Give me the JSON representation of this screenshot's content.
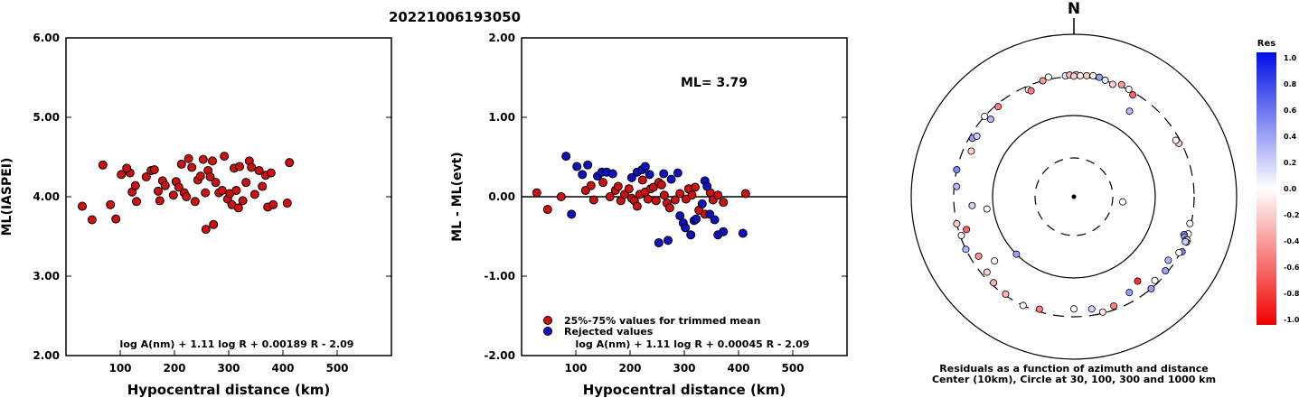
{
  "header": {
    "event_id": "20221006193050"
  },
  "chart_data": [
    {
      "type": "scatter",
      "ylabel": "ML(IASPEI)",
      "xlabel": "Hypocentral distance (km)",
      "xlim": [
        0,
        600
      ],
      "ylim": [
        2.0,
        6.0
      ],
      "x_ticks": [
        "100",
        "200",
        "300",
        "400",
        "500"
      ],
      "y_ticks": [
        "2.00",
        "3.00",
        "4.00",
        "5.00",
        "6.00"
      ],
      "formula": "log A(nm) + 1.11 log R + 0.00189 R - 2.09",
      "marker_color": "#d01010",
      "series": [
        {
          "x": [
            30,
            48,
            82,
            68,
            92,
            102,
            118,
            112,
            122,
            128,
            130,
            148,
            157,
            163,
            170,
            173,
            178,
            183,
            198,
            203,
            208,
            213,
            218,
            222,
            226,
            232,
            238,
            243,
            248,
            253,
            257,
            262,
            266,
            270,
            276,
            282,
            288,
            292,
            298,
            302,
            306,
            310,
            314,
            320,
            326,
            332,
            338,
            342,
            348,
            356,
            362,
            368,
            372,
            378,
            382,
            408,
            412,
            258,
            272,
            318
          ],
          "y": [
            3.88,
            3.71,
            3.9,
            4.4,
            3.72,
            4.28,
            4.3,
            4.36,
            4.06,
            4.14,
            3.94,
            4.25,
            4.33,
            4.34,
            4.07,
            3.95,
            4.2,
            4.14,
            4.02,
            4.19,
            4.12,
            4.41,
            4.05,
            4.0,
            4.48,
            4.37,
            3.94,
            4.21,
            4.26,
            4.47,
            4.05,
            4.33,
            4.25,
            4.45,
            4.18,
            4.05,
            4.08,
            4.51,
            3.97,
            4.04,
            3.9,
            4.36,
            4.08,
            4.38,
            3.95,
            4.18,
            4.45,
            4.37,
            4.03,
            4.33,
            4.13,
            4.27,
            3.87,
            4.3,
            3.9,
            3.92,
            4.43,
            3.59,
            3.65,
            3.86
          ]
        }
      ]
    },
    {
      "type": "scatter",
      "ylabel": "ML - ML(evt)",
      "xlabel": "Hypocentral distance (km)",
      "xlim": [
        0,
        600
      ],
      "ylim": [
        -2.0,
        2.0
      ],
      "x_ticks": [
        "100",
        "200",
        "300",
        "400",
        "500"
      ],
      "y_ticks": [
        "-2.00",
        "-1.00",
        "0.00",
        "1.00",
        "2.00"
      ],
      "annotation": "ML= 3.79",
      "formula": "log A(nm) + 1.11 log R + 0.00045 R - 2.09",
      "legend": [
        {
          "label": "25%-75% values for trimmed mean",
          "color": "#d01010"
        },
        {
          "label": "Rejected values",
          "color": "#1010c0"
        }
      ],
      "series": [
        {
          "name": "25%-75% values for trimmed mean",
          "color": "#d01010",
          "x": [
            28,
            48,
            73,
            118,
            128,
            133,
            150,
            163,
            173,
            178,
            183,
            190,
            198,
            203,
            208,
            213,
            218,
            223,
            228,
            233,
            238,
            243,
            248,
            253,
            258,
            263,
            268,
            273,
            283,
            292,
            303,
            308,
            314,
            320,
            327,
            338,
            348,
            353,
            362,
            372,
            413
          ],
          "y": [
            0.05,
            -0.16,
            0.0,
            0.08,
            0.14,
            -0.04,
            0.18,
            0.0,
            0.08,
            0.13,
            -0.05,
            0.03,
            0.1,
            -0.02,
            -0.05,
            -0.12,
            0.03,
            0.21,
            0.06,
            -0.03,
            0.1,
            0.12,
            -0.05,
            0.18,
            0.15,
            0.02,
            -0.08,
            -0.14,
            -0.04,
            0.04,
            -0.03,
            0.1,
            0.02,
            0.12,
            -0.17,
            -0.22,
            0.05,
            -0.04,
            0.02,
            -0.07,
            0.04
          ]
        },
        {
          "name": "Rejected values",
          "color": "#1010c0",
          "x": [
            82,
            92,
            102,
            112,
            122,
            140,
            148,
            157,
            168,
            203,
            213,
            222,
            228,
            236,
            253,
            262,
            270,
            276,
            288,
            292,
            298,
            302,
            312,
            318,
            322,
            333,
            338,
            342,
            347,
            356,
            362,
            372,
            408
          ],
          "y": [
            0.51,
            -0.22,
            0.38,
            0.28,
            0.4,
            0.26,
            0.31,
            0.31,
            0.29,
            0.24,
            0.31,
            0.34,
            0.38,
            0.28,
            -0.58,
            0.29,
            -0.55,
            0.22,
            0.3,
            -0.24,
            -0.33,
            -0.39,
            -0.48,
            -0.3,
            -0.28,
            -0.09,
            0.2,
            0.13,
            -0.22,
            -0.29,
            -0.48,
            -0.44,
            -0.46
          ]
        }
      ]
    },
    {
      "type": "scatter",
      "subtype": "polar",
      "north_label": "N",
      "caption_line1": "Residuals as a function of azimuth and distance",
      "caption_line2": "Center (10km), Circle at 30, 100, 300 and 1000 km",
      "colorbar": {
        "title": "Res",
        "ticks": [
          "1.0",
          "0.8",
          "0.6",
          "0.4",
          "0.2",
          "0.0",
          "-0.2",
          "-0.4",
          "-0.6",
          "-0.8",
          "-1.0"
        ],
        "positive_color": "#0010e6",
        "negative_color": "#f00000"
      },
      "points": {
        "azimuth_deg": [
          356,
          358,
          1,
          3,
          6,
          9,
          12,
          15,
          19,
          23,
          27,
          30,
          33,
          63,
          61,
          96,
          103,
          108,
          109,
          110,
          111,
          111,
          112,
          112,
          117,
          118,
          124,
          129,
          136,
          140,
          143,
          150,
          160,
          166,
          171,
          180,
          197,
          205,
          215,
          223,
          225,
          229,
          231,
          238,
          244,
          251,
          253,
          257,
          262,
          265,
          275,
          283,
          294,
          300,
          302,
          312,
          313,
          320,
          337,
          338,
          345,
          348,
          0
        ],
        "distance_km": [
          310,
          315,
          318,
          310,
          315,
          322,
          318,
          305,
          290,
          315,
          305,
          280,
          180,
          280,
          270,
          40,
          290,
          300,
          270,
          280,
          300,
          310,
          310,
          300,
          310,
          290,
          250,
          280,
          270,
          300,
          200,
          230,
          270,
          290,
          250,
          240,
          280,
          300,
          290,
          280,
          100,
          260,
          180,
          240,
          300,
          290,
          240,
          300,
          120,
          180,
          280,
          300,
          240,
          275,
          255,
          300,
          250,
          280,
          270,
          255,
          300,
          320,
          305
        ],
        "residual": [
          0.1,
          -0.3,
          0.2,
          -0.1,
          -0.2,
          0.0,
          0.4,
          0.1,
          -0.2,
          -0.4,
          0.0,
          -0.6,
          0.3,
          -0.2,
          0.0,
          0.0,
          0.0,
          0.0,
          0.5,
          0.4,
          0.0,
          0.0,
          0.3,
          0.2,
          0.5,
          0.0,
          0.3,
          0.4,
          0.0,
          0.4,
          -0.8,
          0.4,
          -0.5,
          -0.1,
          0.2,
          0.0,
          -0.5,
          0.0,
          -0.3,
          -0.3,
          0.4,
          -0.2,
          0.0,
          -0.4,
          0.3,
          0.0,
          -0.6,
          -0.2,
          0.0,
          0.2,
          0.3,
          0.5,
          -0.2,
          0.4,
          0.2,
          0.0,
          0.3,
          -0.5,
          0.0,
          -0.5,
          -0.4,
          0.0,
          -0.2
        ]
      }
    }
  ]
}
